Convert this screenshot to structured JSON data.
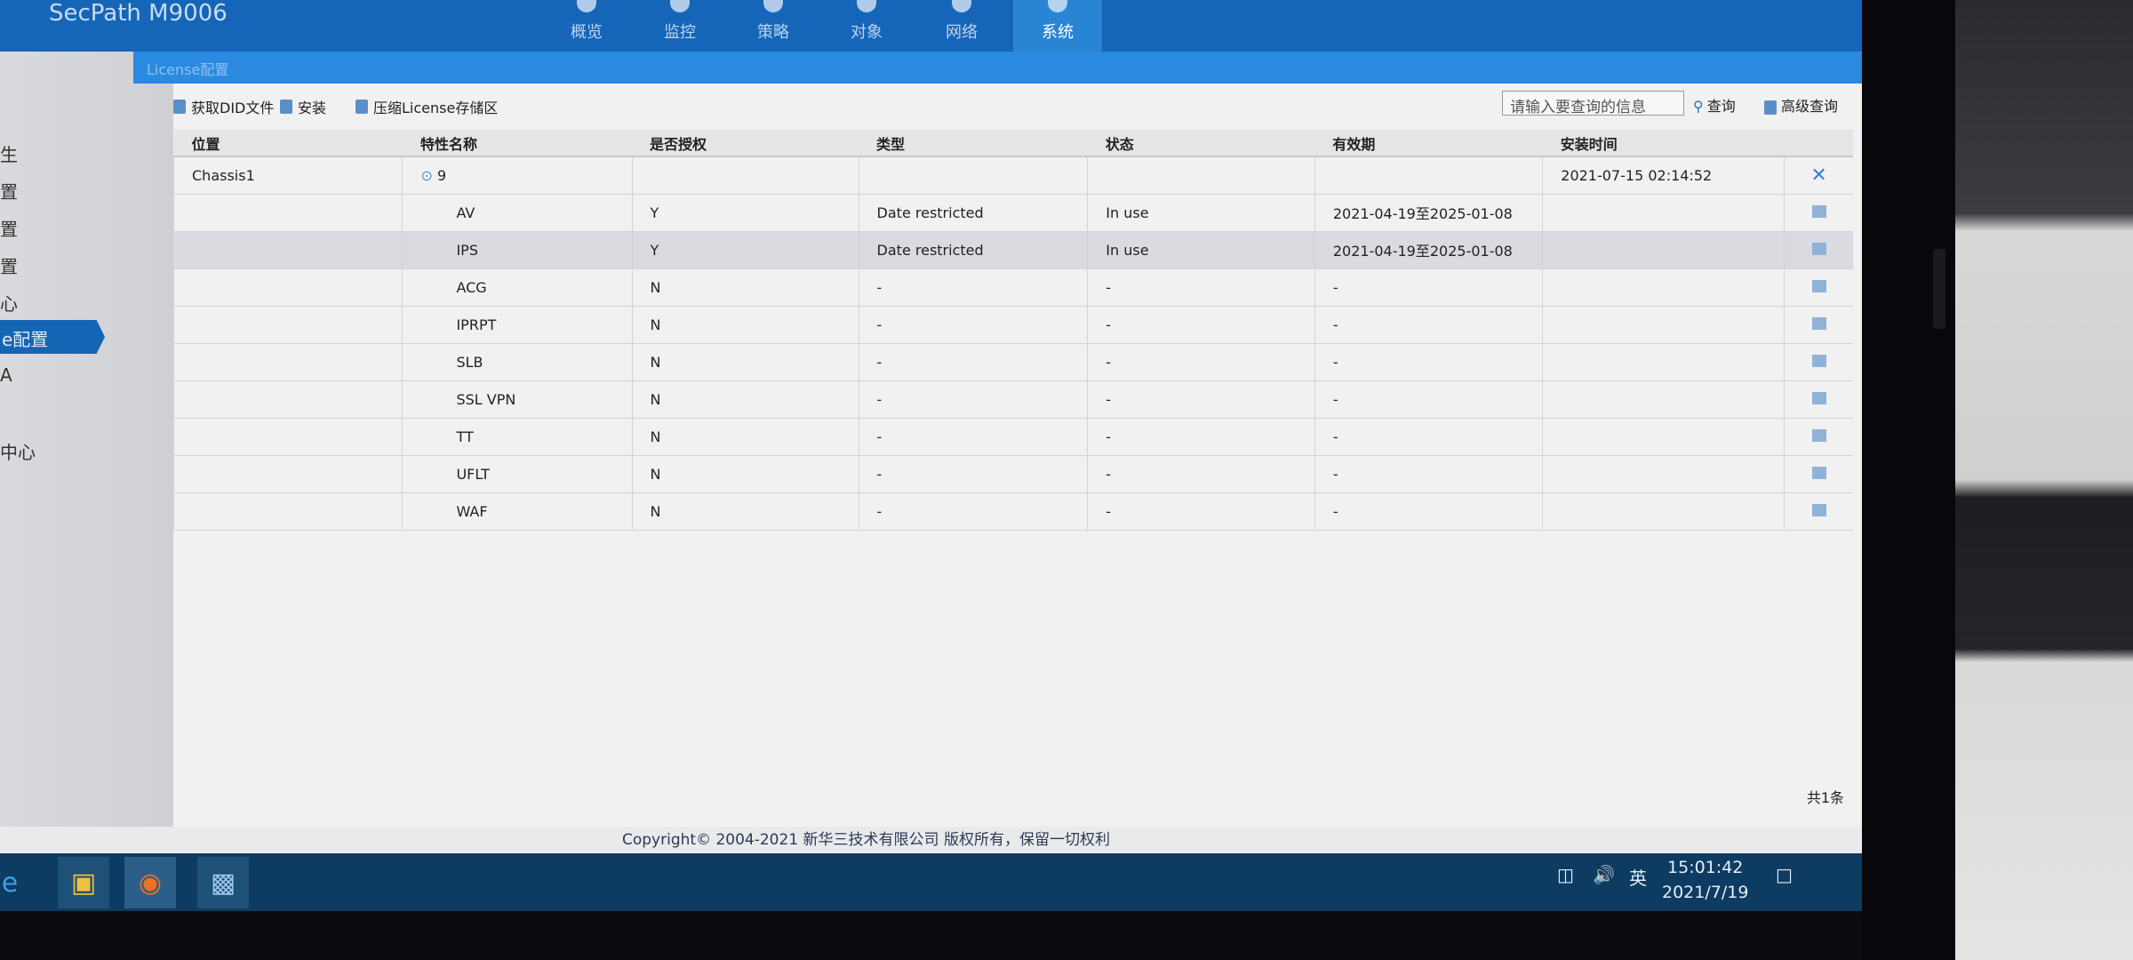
{
  "app": {
    "title": "SecPath M9006",
    "panel_title": "License配置"
  },
  "nav": [
    {
      "label": "概览"
    },
    {
      "label": "监控"
    },
    {
      "label": "策略"
    },
    {
      "label": "对象"
    },
    {
      "label": "网络"
    },
    {
      "label": "系统",
      "active": true
    }
  ],
  "sidebar": {
    "items": [
      {
        "label": "生"
      },
      {
        "label": "置"
      },
      {
        "label": "置"
      },
      {
        "label": "置"
      },
      {
        "label": "心"
      },
      {
        "label": "e配置",
        "active": true
      },
      {
        "label": "A"
      },
      {
        "label": "中心"
      }
    ]
  },
  "toolbar": {
    "get_did": "获取DID文件",
    "install": "安装",
    "compress": "压缩License存储区",
    "search_placeholder": "请输入要查询的信息",
    "query": "查询",
    "advanced_query": "高级查询"
  },
  "table": {
    "columns": [
      "位置",
      "特性名称",
      "是否授权",
      "类型",
      "状态",
      "有效期",
      "安装时间"
    ],
    "group": {
      "location": "Chassis1",
      "count": "9",
      "install_time": "2021-07-15 02:14:52"
    },
    "rows": [
      {
        "name": "AV",
        "auth": "Y",
        "type": "Date restricted",
        "status": "In use",
        "validity": "2021-04-19至2025-01-08"
      },
      {
        "name": "IPS",
        "auth": "Y",
        "type": "Date restricted",
        "status": "In use",
        "validity": "2021-04-19至2025-01-08"
      },
      {
        "name": "ACG",
        "auth": "N",
        "type": "-",
        "status": "-",
        "validity": "-"
      },
      {
        "name": "IPRPT",
        "auth": "N",
        "type": "-",
        "status": "-",
        "validity": "-"
      },
      {
        "name": "SLB",
        "auth": "N",
        "type": "-",
        "status": "-",
        "validity": "-"
      },
      {
        "name": "SSL VPN",
        "auth": "N",
        "type": "-",
        "status": "-",
        "validity": "-"
      },
      {
        "name": "TT",
        "auth": "N",
        "type": "-",
        "status": "-",
        "validity": "-"
      },
      {
        "name": "UFLT",
        "auth": "N",
        "type": "-",
        "status": "-",
        "validity": "-"
      },
      {
        "name": "WAF",
        "auth": "N",
        "type": "-",
        "status": "-",
        "validity": "-"
      }
    ],
    "total": "共1条"
  },
  "footer": {
    "copyright": "Copyright© 2004-2021 新华三技术有限公司 版权所有，保留一切权利"
  },
  "taskbar": {
    "ime": "英",
    "time": "15:01:42",
    "date": "2021/7/19"
  }
}
